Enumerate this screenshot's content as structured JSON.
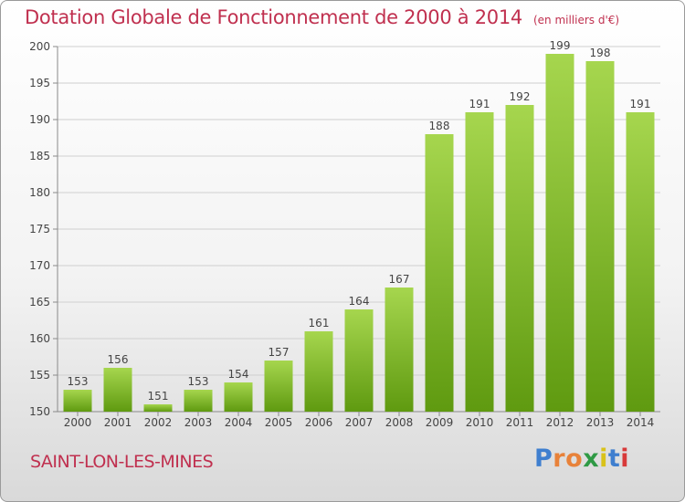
{
  "header": {
    "title": "Dotation Globale de Fonctionnement de 2000 à 2014",
    "subtitle": "(en milliers d'€)"
  },
  "footer": {
    "commune": "SAINT-LON-LES-MINES",
    "brand": "Proxiti"
  },
  "colors": {
    "title": "#c0304f",
    "bar_light": "#a6d64e",
    "bar_dark": "#5f9a10",
    "brand_letters": [
      "#3f7fcf",
      "#e8823a",
      "#e8823a",
      "#2f9a45",
      "#d9c21a",
      "#3f7fcf",
      "#d83a3a"
    ]
  },
  "chart_data": {
    "type": "bar",
    "categories": [
      "2000",
      "2001",
      "2002",
      "2003",
      "2004",
      "2005",
      "2006",
      "2007",
      "2008",
      "2009",
      "2010",
      "2011",
      "2012",
      "2013",
      "2014"
    ],
    "values": [
      153,
      156,
      151,
      153,
      154,
      157,
      161,
      164,
      167,
      188,
      191,
      192,
      199,
      198,
      191
    ],
    "ylim": [
      150,
      200
    ],
    "yticks": [
      150,
      155,
      160,
      165,
      170,
      175,
      180,
      185,
      190,
      195,
      200
    ],
    "grid": true,
    "legend": "none"
  }
}
